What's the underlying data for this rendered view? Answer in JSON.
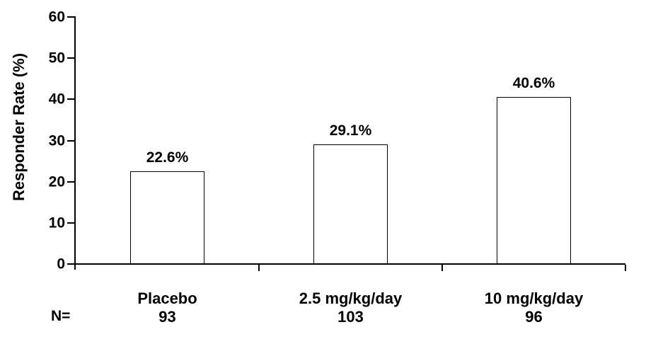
{
  "chart_data": {
    "type": "bar",
    "title": "",
    "ylabel": "Responder Rate (%)",
    "xlabel": "",
    "ylim": [
      0,
      60
    ],
    "yticks": [
      0,
      10,
      20,
      30,
      40,
      50,
      60
    ],
    "grid": false,
    "legend": null,
    "categories": [
      "Placebo",
      "2.5 mg/kg/day",
      "10 mg/kg/day"
    ],
    "values": [
      22.6,
      29.1,
      40.6
    ],
    "value_labels": [
      "22.6%",
      "29.1%",
      "40.6%"
    ],
    "n_prefix": "N=",
    "n_values": [
      "93",
      "103",
      "96"
    ],
    "colors": {
      "bar_fill": "#ffffff",
      "bar_border": "#000000",
      "axis": "#000000",
      "text": "#000000",
      "background": "#ffffff"
    }
  }
}
